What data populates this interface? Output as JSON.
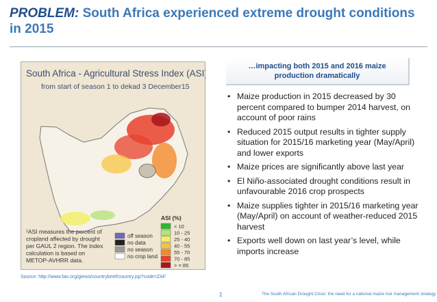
{
  "header": {
    "title_lead": "PROBLEM:",
    "title_rest": "South Africa experienced extreme drought conditions in 2015"
  },
  "map": {
    "title": "South Africa - Agricultural Stress Index (ASI)",
    "title_note": "1",
    "subtitle": "from start of season 1 to dekad 3 December15",
    "legend_title": "ASI (%)",
    "legend": [
      {
        "label": "< 10",
        "color": "#2eb82e"
      },
      {
        "label": "10 - 25",
        "color": "#b5e37a"
      },
      {
        "label": "25 - 40",
        "color": "#f3ef63"
      },
      {
        "label": "40 - 55",
        "color": "#f8c33c"
      },
      {
        "label": "55 - 70",
        "color": "#f38a2a"
      },
      {
        "label": "70 - 85",
        "color": "#e8412b"
      },
      {
        "label": "> = 85",
        "color": "#a8151b"
      }
    ],
    "other_legend": [
      {
        "label": "off season",
        "color": "#6b6bb8"
      },
      {
        "label": "no data",
        "color": "#222222"
      },
      {
        "label": "no season",
        "color": "#9a9a9a"
      },
      {
        "label": "no crop land",
        "color": "#ffffff"
      }
    ],
    "footnote": "¹ASI measures the percent of cropland affected by drought per GAUL 2 region. The index calculation is based on METOP-AVHRR data."
  },
  "callout": {
    "heading": "…impacting both 2015 and 2016 maize production dramatically",
    "bullets": [
      "Maize production in 2015 decreased by 30 percent compared to bumper 2014 harvest, on account of poor rains",
      "Reduced 2015 output results in tighter supply situation for 2015/16 marketing year (May/April) and lower exports",
      "Maize prices are significantly above last year",
      "El Niño-associated drought conditions result in unfavourable 2016 crop prospects",
      "Maize supplies tighter in 2015/16 marketing year (May/April) on account of weather-reduced 2015 harvest",
      "Exports well down on last year’s level, while imports increase"
    ]
  },
  "source": "Source: http://www.fao.org/giews/countrybrief/country.jsp?code=ZAF",
  "footer": {
    "page": "2",
    "text": "The South African Drought Crisis: the need for a national maize risk management strategy"
  }
}
